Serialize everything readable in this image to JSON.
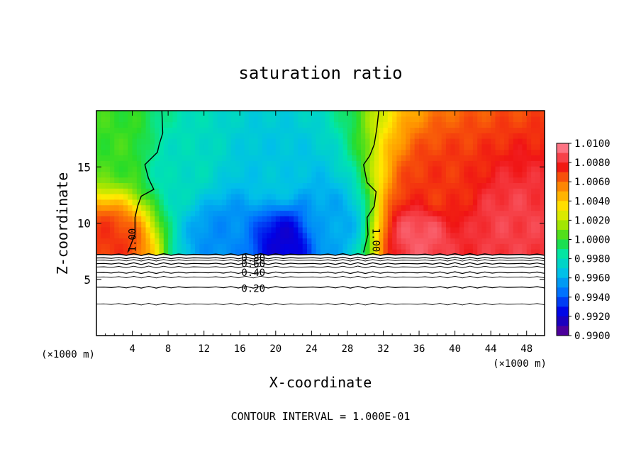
{
  "chart_data": {
    "type": "heatmap",
    "title": "saturation ratio",
    "xlabel": "X-coordinate",
    "ylabel": "Z-coordinate",
    "x_unit_label": "(×1000 m)",
    "x_unit_label_right": "(×1000 m)",
    "footer": "CONTOUR INTERVAL = 1.000E-01",
    "xlim": [
      0,
      50
    ],
    "ylim": [
      0,
      20
    ],
    "x_ticks": [
      4,
      8,
      12,
      16,
      20,
      24,
      28,
      32,
      36,
      40,
      44,
      48
    ],
    "x_tick_labels": [
      "4",
      "8",
      "12",
      "16",
      "20",
      "24",
      "28",
      "32",
      "36",
      "40",
      "44",
      "48"
    ],
    "y_ticks": [
      5,
      10,
      15
    ],
    "y_tick_labels": [
      "5",
      "10",
      "15"
    ],
    "colorbar": {
      "min": 0.99,
      "max": 1.01,
      "labels": [
        "1.0100",
        "1.0080",
        "1.0060",
        "1.0040",
        "1.0020",
        "1.0000",
        "0.9980",
        "0.9960",
        "0.9940",
        "0.9920",
        "0.9900"
      ]
    },
    "contour_labels": [
      "1.00",
      "1.00",
      "0.80",
      "0.60",
      "0.40",
      "0.20"
    ],
    "cloud_base_height": 7.2,
    "below_cloud_contour_levels": [
      0.8,
      0.6,
      0.4,
      0.2
    ],
    "below_cloud_contour_heights": [
      6.9,
      6.4,
      5.6,
      4.3
    ],
    "regions": [
      {
        "x": 1.5,
        "z": 17,
        "value": 1.0002
      },
      {
        "x": 1.5,
        "z": 8.2,
        "value": 1.007
      },
      {
        "x": 10,
        "z": 15,
        "value": 0.9978
      },
      {
        "x": 14,
        "z": 9,
        "value": 0.9952
      },
      {
        "x": 20,
        "z": 14,
        "value": 0.9968
      },
      {
        "x": 21,
        "z": 8.5,
        "value": 0.992
      },
      {
        "x": 26,
        "z": 10,
        "value": 0.9958
      },
      {
        "x": 38,
        "z": 13,
        "value": 1.007
      },
      {
        "x": 36,
        "z": 9,
        "value": 1.009
      },
      {
        "x": 46,
        "z": 10,
        "value": 1.0085
      }
    ]
  }
}
